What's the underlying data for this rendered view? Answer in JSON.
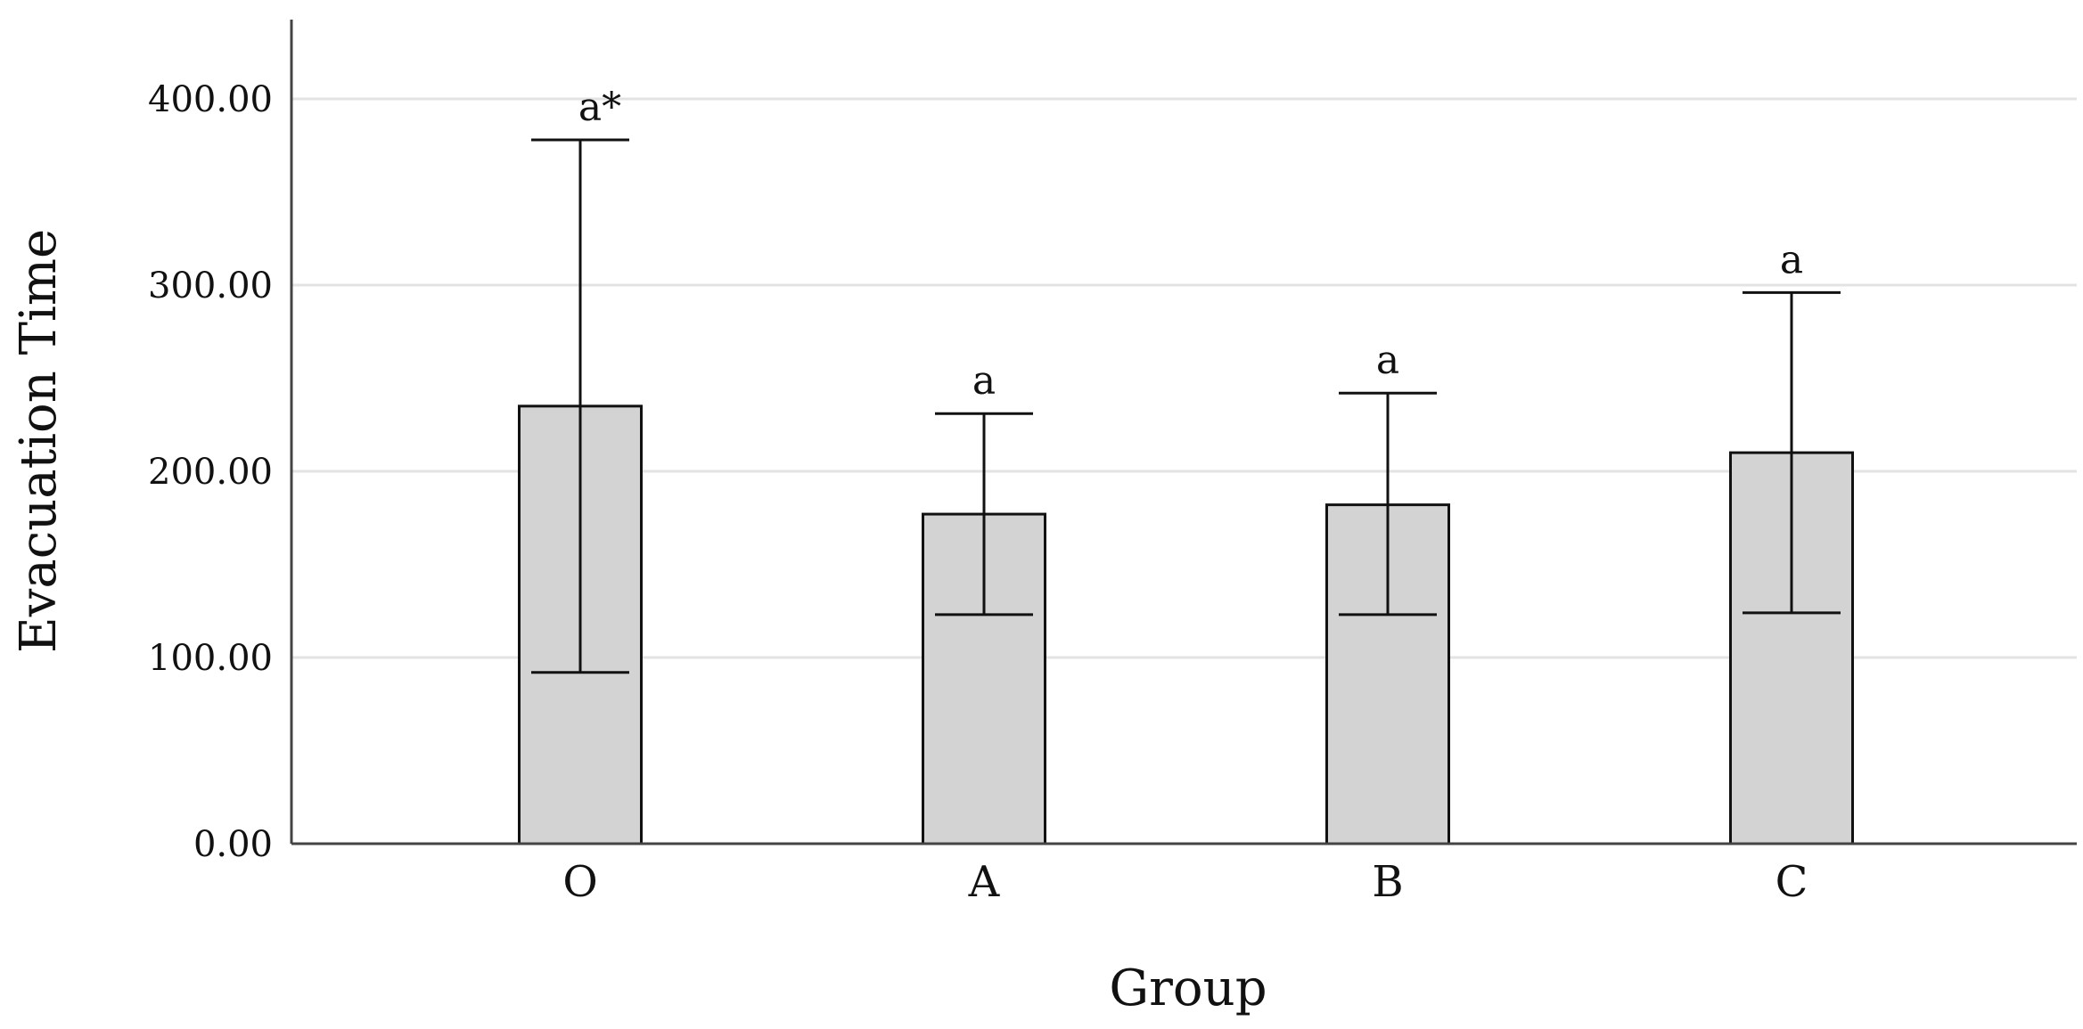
{
  "chart_data": {
    "type": "bar",
    "title": "",
    "xlabel": "Group",
    "ylabel": "Evacuation Time",
    "categories": [
      "O",
      "A",
      "B",
      "C"
    ],
    "values": [
      235,
      177,
      182,
      210
    ],
    "error_low": [
      92,
      123,
      123,
      124
    ],
    "error_high": [
      378,
      231,
      242,
      296
    ],
    "annotations": [
      "a*",
      "a",
      "a",
      "a"
    ],
    "ylim": [
      0,
      440
    ],
    "yticks": [
      0,
      100,
      200,
      300,
      400
    ],
    "ytick_labels": [
      "0.00",
      "100.00",
      "200.00",
      "300.00",
      "400.00"
    ],
    "grid": true,
    "legend": "none",
    "colors": {
      "bar_fill": "#d3d3d3",
      "bar_stroke": "#111111",
      "grid": "#e3e3e3",
      "axis": "#444444"
    }
  }
}
